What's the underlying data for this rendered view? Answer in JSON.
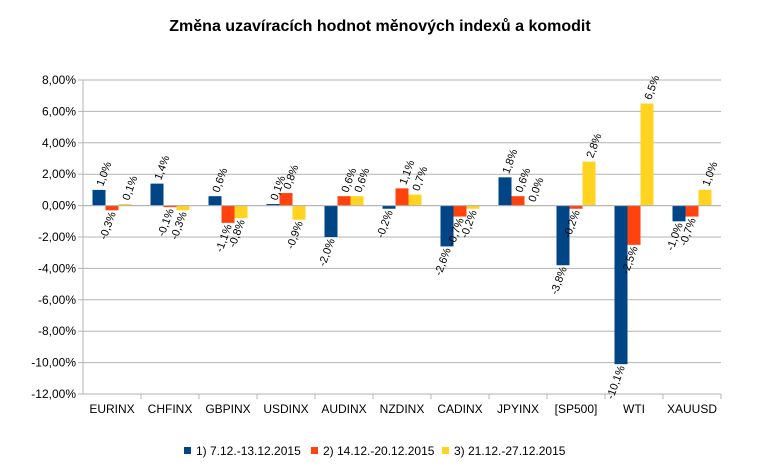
{
  "chart_data": {
    "type": "bar",
    "title": "Změna uzavíracích hodnot měnových indexů a komodit",
    "categories": [
      "EURINX",
      "CHFINX",
      "GBPINX",
      "USDINX",
      "AUDINX",
      "NZDINX",
      "CADINX",
      "JPYINX",
      "[SP500]",
      "WTI",
      "XAUUSD"
    ],
    "y_ticks": [
      "8,00%",
      "6,00%",
      "4,00%",
      "2,00%",
      "0,00%",
      "-2,00%",
      "-4,00%",
      "-6,00%",
      "-8,00%",
      "-10,00%",
      "-12,00%"
    ],
    "ylim": [
      -12,
      8
    ],
    "grid": true,
    "legend_position": "bottom",
    "series": [
      {
        "name": "1) 7.12.-13.12.2015",
        "color": "#004586",
        "values": [
          1.0,
          1.4,
          0.6,
          0.1,
          -2.0,
          -0.2,
          -2.6,
          1.8,
          -3.8,
          -10.1,
          -1.0
        ],
        "labels": [
          "1,0%",
          "1,4%",
          "0,6%",
          "0,1%",
          "-2,0%",
          "-0,2%",
          "-2,6%",
          "1,8%",
          "-3,8%",
          "-10,1%",
          "-1,0%"
        ]
      },
      {
        "name": "2) 14.12.-20.12.2015",
        "color": "#ff420e",
        "values": [
          -0.3,
          -0.1,
          -1.1,
          0.8,
          0.6,
          1.1,
          -0.7,
          0.6,
          -0.2,
          -2.5,
          -0.7
        ],
        "labels": [
          "-0,3%",
          "-0,1%",
          "-1,1%",
          "0,8%",
          "0,6%",
          "1,1%",
          "-0,7%",
          "0,6%",
          "-0,2%",
          "-2,5%",
          "-0,7%"
        ]
      },
      {
        "name": "3) 21.12.-27.12.2015",
        "color": "#ffd320",
        "values": [
          0.1,
          -0.3,
          -0.8,
          -0.9,
          0.6,
          0.7,
          -0.2,
          0.0,
          2.8,
          6.5,
          1.0
        ],
        "labels": [
          "0,1%",
          "-0,3%",
          "-0,8%",
          "-0,9%",
          "0,6%",
          "0,7%",
          "-0,2%",
          "0,0%",
          "2,8%",
          "6,5%",
          "1,0%"
        ]
      }
    ]
  }
}
